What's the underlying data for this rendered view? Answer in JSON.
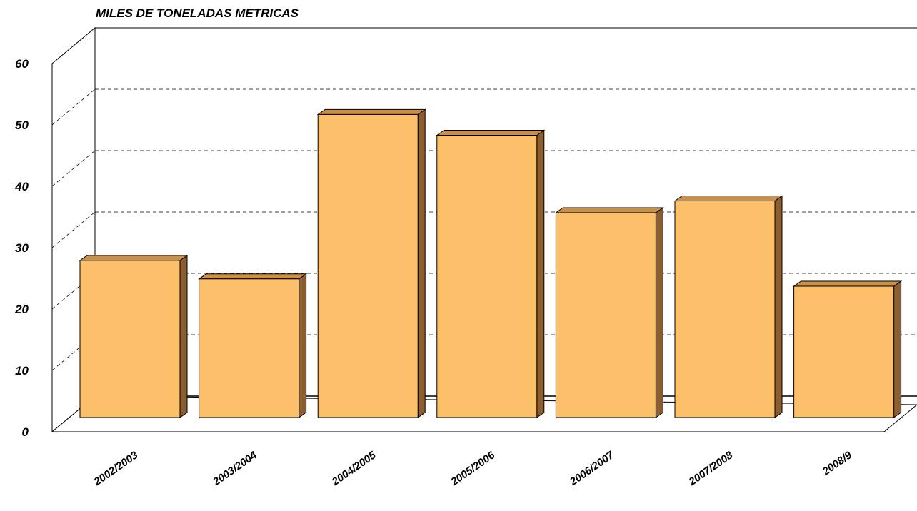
{
  "chart_data": {
    "type": "bar",
    "title": "MILES DE TONELADAS METRICAS",
    "xlabel": "",
    "ylabel": "",
    "categories": [
      "2002/2003",
      "2003/2004",
      "2004/2005",
      "2005/2006",
      "2006/2007",
      "2007/2008",
      "2008/9"
    ],
    "values": [
      28,
      24.7,
      54,
      50.3,
      36.5,
      38.6,
      23.4
    ],
    "ylim": [
      0,
      60
    ],
    "yticks": [
      "0",
      "10",
      "20",
      "30",
      "40",
      "50",
      "60"
    ],
    "grid": true,
    "three_d": true,
    "colors": {
      "bar_front": "#FCC06A",
      "bar_top": "#C9904A",
      "bar_side": "#8B5E2F",
      "outline": "#000000",
      "gridline": "#000000"
    }
  }
}
